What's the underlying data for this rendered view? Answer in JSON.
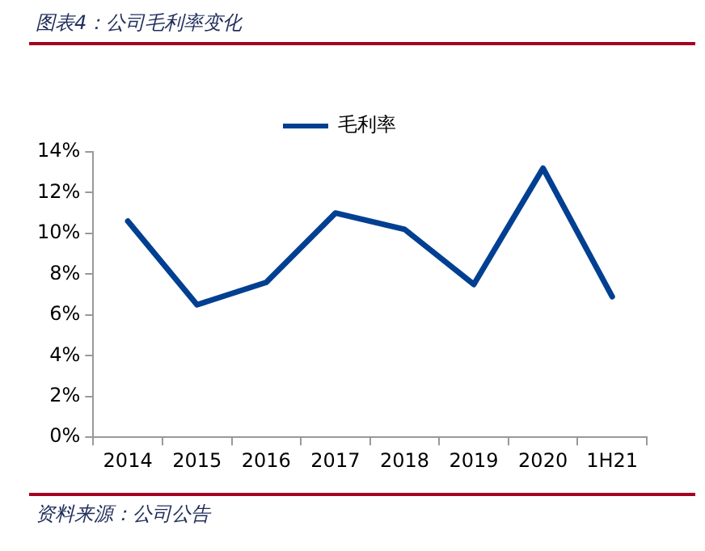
{
  "chart_data": {
    "type": "line",
    "title": "图表4：公司毛利率变化",
    "categories": [
      "2014",
      "2015",
      "2016",
      "2017",
      "2018",
      "2019",
      "2020",
      "1H21"
    ],
    "series": [
      {
        "name": "毛利率",
        "color": "#003f91",
        "values": [
          10.6,
          6.5,
          7.6,
          11.0,
          10.2,
          7.5,
          13.2,
          6.9
        ]
      }
    ],
    "ylim": [
      0,
      14
    ],
    "yticks": [
      {
        "value": 0,
        "label": "0%"
      },
      {
        "value": 2,
        "label": "2%"
      },
      {
        "value": 4,
        "label": "4%"
      },
      {
        "value": 6,
        "label": "6%"
      },
      {
        "value": 8,
        "label": "8%"
      },
      {
        "value": 10,
        "label": "10%"
      },
      {
        "value": 12,
        "label": "12%"
      },
      {
        "value": 14,
        "label": "14%"
      }
    ],
    "grid": false,
    "legend": "top",
    "marker": "none",
    "line_style": "solid",
    "annotations": [
      "资料来源：公司公告"
    ]
  }
}
